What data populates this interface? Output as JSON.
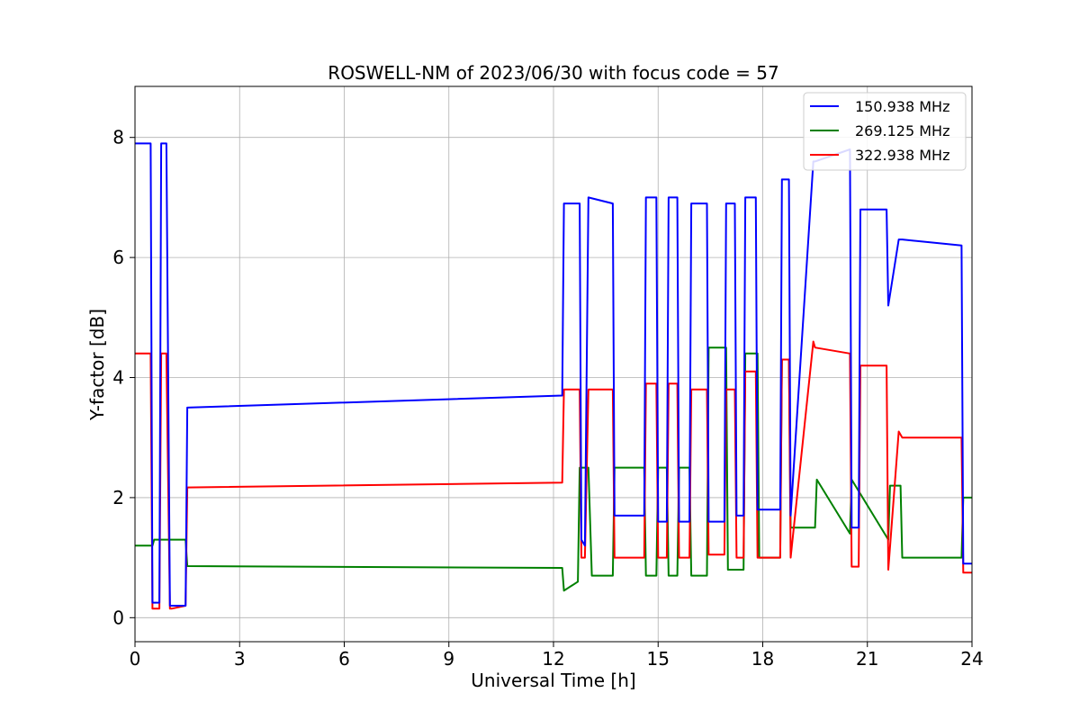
{
  "chart_data": {
    "type": "line",
    "title": "ROSWELL-NM of 2023/06/30 with focus code = 57",
    "xlabel": "Universal Time [h]",
    "ylabel": "Y-factor [dB]",
    "xlim": [
      0,
      24
    ],
    "ylim": [
      -0.4,
      8.85
    ],
    "xticks": [
      0,
      3,
      6,
      9,
      12,
      15,
      18,
      21,
      24
    ],
    "yticks": [
      0,
      2,
      4,
      6,
      8
    ],
    "grid": true,
    "legend_position": "top-right",
    "series": [
      {
        "name": "150.938 MHz",
        "color": "#0000ff",
        "x": [
          0,
          0.45,
          0.5,
          0.55,
          0.7,
          0.75,
          0.9,
          1.0,
          1.05,
          1.45,
          1.5,
          12.25,
          12.3,
          12.75,
          12.8,
          12.9,
          13.0,
          13.7,
          13.75,
          14.6,
          14.65,
          14.95,
          15.0,
          15.25,
          15.3,
          15.55,
          15.6,
          15.9,
          15.95,
          16.4,
          16.45,
          16.9,
          16.95,
          17.2,
          17.25,
          17.45,
          17.5,
          17.8,
          17.85,
          18.5,
          18.55,
          18.75,
          18.8,
          19.45,
          19.5,
          20.5,
          20.55,
          20.75,
          20.8,
          21.55,
          21.6,
          21.9,
          22.0,
          23.7,
          23.75,
          24.0
        ],
        "y": [
          7.9,
          7.9,
          0.25,
          0.25,
          0.25,
          7.9,
          7.9,
          0.2,
          0.2,
          0.2,
          3.5,
          3.7,
          6.9,
          6.9,
          1.3,
          1.2,
          7.0,
          6.9,
          1.7,
          1.7,
          7.0,
          7.0,
          1.6,
          1.6,
          7.0,
          7.0,
          1.6,
          1.6,
          6.9,
          6.9,
          1.6,
          1.6,
          6.9,
          6.9,
          1.7,
          1.7,
          7.0,
          7.0,
          1.8,
          1.8,
          7.3,
          7.3,
          1.7,
          7.6,
          7.6,
          7.8,
          1.5,
          1.5,
          6.8,
          6.8,
          5.2,
          6.3,
          6.3,
          6.2,
          0.9,
          0.9
        ]
      },
      {
        "name": "269.125 MHz",
        "color": "#008000",
        "x": [
          0,
          0.5,
          0.55,
          0.95,
          1.0,
          1.45,
          1.5,
          12.25,
          12.3,
          12.7,
          12.75,
          13.0,
          13.1,
          13.7,
          13.75,
          14.6,
          14.65,
          14.95,
          15.0,
          15.25,
          15.3,
          15.55,
          15.6,
          15.9,
          15.95,
          16.4,
          16.45,
          16.95,
          17.0,
          17.45,
          17.5,
          17.85,
          17.9,
          18.5,
          18.55,
          18.75,
          18.8,
          19.5,
          19.55,
          20.5,
          20.55,
          21.6,
          21.65,
          21.95,
          22.0,
          23.7,
          23.75,
          24.0
        ],
        "y": [
          1.2,
          1.2,
          1.3,
          1.3,
          1.3,
          1.3,
          0.86,
          0.83,
          0.45,
          0.6,
          2.5,
          2.5,
          0.7,
          0.7,
          2.5,
          2.5,
          0.7,
          0.7,
          2.5,
          2.5,
          0.7,
          0.7,
          2.5,
          2.5,
          0.7,
          0.7,
          4.5,
          4.5,
          0.8,
          0.8,
          4.4,
          4.4,
          1.0,
          1.0,
          4.3,
          4.3,
          1.5,
          1.5,
          2.3,
          1.4,
          2.3,
          1.3,
          2.2,
          2.2,
          1.0,
          1.0,
          2.0,
          2.0
        ]
      },
      {
        "name": "322.938 MHz",
        "color": "#ff0000",
        "x": [
          0,
          0.45,
          0.5,
          0.55,
          0.7,
          0.75,
          0.9,
          1.0,
          1.05,
          1.45,
          1.5,
          12.25,
          12.3,
          12.75,
          12.8,
          12.9,
          13.0,
          13.7,
          13.75,
          14.6,
          14.65,
          14.95,
          15.0,
          15.25,
          15.3,
          15.55,
          15.6,
          15.9,
          15.95,
          16.4,
          16.45,
          16.9,
          16.95,
          17.2,
          17.25,
          17.45,
          17.5,
          17.8,
          17.85,
          18.5,
          18.55,
          18.75,
          18.8,
          19.45,
          19.5,
          20.5,
          20.55,
          20.75,
          20.8,
          21.55,
          21.6,
          21.9,
          22.0,
          23.7,
          23.75,
          24.0
        ],
        "y": [
          4.4,
          4.4,
          0.15,
          0.15,
          0.15,
          4.4,
          4.4,
          0.15,
          0.15,
          0.2,
          2.17,
          2.25,
          3.8,
          3.8,
          1.0,
          1.0,
          3.8,
          3.8,
          1.0,
          1.0,
          3.9,
          3.9,
          1.0,
          1.0,
          3.9,
          3.9,
          1.0,
          1.0,
          3.8,
          3.8,
          1.05,
          1.05,
          3.8,
          3.8,
          1.0,
          1.0,
          4.1,
          4.1,
          1.0,
          1.0,
          4.3,
          4.3,
          1.0,
          4.6,
          4.5,
          4.4,
          0.85,
          0.85,
          4.2,
          4.2,
          0.8,
          3.1,
          3.0,
          3.0,
          0.75,
          0.75
        ]
      }
    ]
  }
}
